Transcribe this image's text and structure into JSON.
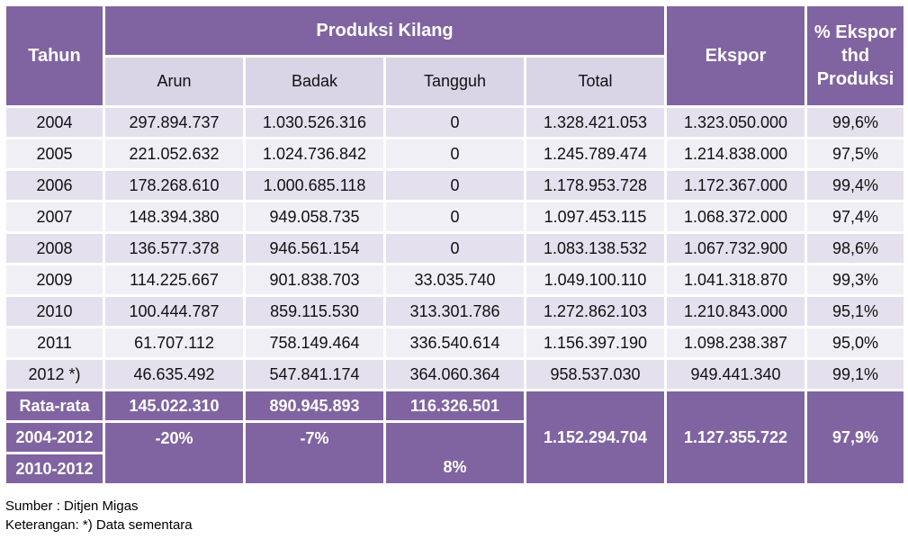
{
  "header": {
    "tahun": "Tahun",
    "produksi_kilang": "Produksi Kilang",
    "arun": "Arun",
    "badak": "Badak",
    "tangguh": "Tangguh",
    "total": "Total",
    "ekspor": "Ekspor",
    "pct_line1": "% Ekspor",
    "pct_line2": "thd",
    "pct_line3": "Produksi"
  },
  "rows": [
    {
      "year": "2004",
      "arun": "297.894.737",
      "badak": "1.030.526.316",
      "tangguh": "0",
      "total": "1.328.421.053",
      "ekspor": "1.323.050.000",
      "pct": "99,6%"
    },
    {
      "year": "2005",
      "arun": "221.052.632",
      "badak": "1.024.736.842",
      "tangguh": "0",
      "total": "1.245.789.474",
      "ekspor": "1.214.838.000",
      "pct": "97,5%"
    },
    {
      "year": "2006",
      "arun": "178.268.610",
      "badak": "1.000.685.118",
      "tangguh": "0",
      "total": "1.178.953.728",
      "ekspor": "1.172.367.000",
      "pct": "99,4%"
    },
    {
      "year": "2007",
      "arun": "148.394.380",
      "badak": "949.058.735",
      "tangguh": "0",
      "total": "1.097.453.115",
      "ekspor": "1.068.372.000",
      "pct": "97,4%"
    },
    {
      "year": "2008",
      "arun": "136.577.378",
      "badak": "946.561.154",
      "tangguh": "0",
      "total": "1.083.138.532",
      "ekspor": "1.067.732.900",
      "pct": "98,6%"
    },
    {
      "year": "2009",
      "arun": "114.225.667",
      "badak": "901.838.703",
      "tangguh": "33.035.740",
      "total": "1.049.100.110",
      "ekspor": "1.041.318.870",
      "pct": "99,3%"
    },
    {
      "year": "2010",
      "arun": "100.444.787",
      "badak": "859.115.530",
      "tangguh": "313.301.786",
      "total": "1.272.862.103",
      "ekspor": "1.210.843.000",
      "pct": "95,1%"
    },
    {
      "year": "2011",
      "arun": "61.707.112",
      "badak": "758.149.464",
      "tangguh": "336.540.614",
      "total": "1.156.397.190",
      "ekspor": "1.098.238.387",
      "pct": "95,0%"
    },
    {
      "year": "2012 *)",
      "arun": "46.635.492",
      "badak": "547.841.174",
      "tangguh": "364.060.364",
      "total": "958.537.030",
      "ekspor": "949.441.340",
      "pct": "99,1%"
    }
  ],
  "footer": {
    "rata_label": "Rata-rata",
    "rata_arun": "145.022.310",
    "rata_badak": "890.945.893",
    "rata_tangguh": "116.326.501",
    "growth1_label": "2004-2012",
    "growth1_arun": "-20%",
    "growth1_badak": "-7%",
    "growth2_label": "2010-2012",
    "growth2_tangguh": "8%",
    "total": "1.152.294.704",
    "ekspor": "1.127.355.722",
    "pct": "97,9%"
  },
  "notes": {
    "source": "Sumber : Ditjen Migas",
    "remark": "Keterangan: *) Data sementara"
  }
}
